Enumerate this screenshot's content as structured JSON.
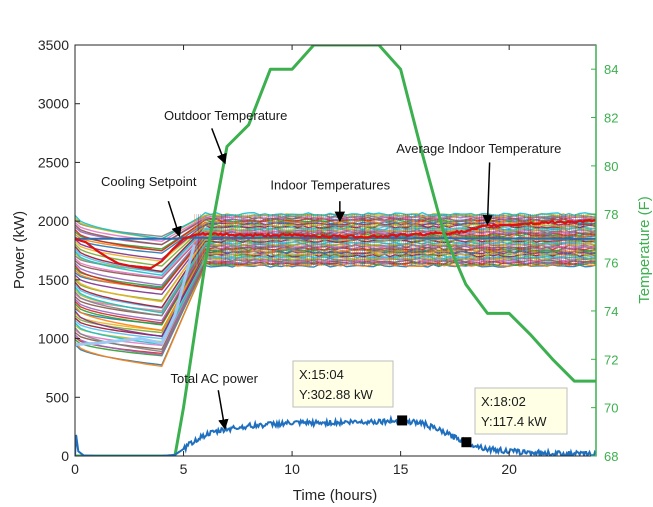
{
  "chart_data": {
    "type": "line",
    "xlabel": "Time (hours)",
    "ylabel_left": "Power (kW)",
    "ylabel_right": "Temperature (F)",
    "xlim": [
      0,
      24
    ],
    "ylim_left": [
      0,
      3500
    ],
    "ylim_right": [
      68,
      85
    ],
    "xticks": [
      0,
      5,
      10,
      15,
      20
    ],
    "yticks_left": [
      0,
      500,
      1000,
      1500,
      2000,
      2500,
      3000,
      3500
    ],
    "yticks_right": [
      68,
      70,
      72,
      74,
      76,
      78,
      80,
      82,
      84
    ],
    "grid": false,
    "colors": {
      "outdoor": "#3cb04f",
      "power": "#1f6fbf",
      "average": "#e01010",
      "setpoint": "#2b6cb3",
      "right_axis": "#3cb04f"
    },
    "outdoor_temperature": {
      "x": [
        0,
        4.6,
        5,
        6,
        7,
        8,
        9,
        10,
        11,
        12,
        13,
        14,
        15,
        16,
        17,
        18,
        19,
        20,
        21,
        22,
        23,
        24
      ],
      "y": [
        68,
        68,
        70,
        76,
        80.8,
        81.7,
        84,
        84,
        85,
        85,
        85,
        85,
        84,
        80.5,
        77.2,
        75.1,
        73.9,
        73.9,
        73,
        72,
        71.1,
        71.1
      ]
    },
    "total_ac_power": {
      "x": [
        0,
        0.05,
        0.15,
        0.4,
        1,
        2,
        3,
        4,
        4.6,
        5,
        5.5,
        6,
        7,
        8,
        9,
        10,
        11,
        12,
        13,
        14,
        15,
        16,
        17,
        18,
        19,
        20,
        21,
        22,
        23,
        24
      ],
      "y": [
        0,
        180,
        40,
        5,
        0,
        0,
        0,
        0,
        10,
        60,
        130,
        180,
        230,
        255,
        270,
        280,
        280,
        285,
        290,
        295,
        300,
        280,
        200,
        117,
        60,
        40,
        30,
        22,
        18,
        15
      ]
    },
    "average_indoor_temperature": {
      "x": [
        0,
        0.5,
        1,
        1.5,
        2,
        2.5,
        3,
        3.5,
        4,
        4.5,
        5,
        5.5,
        6,
        8,
        10,
        12,
        14,
        16,
        17,
        18,
        19,
        20,
        22,
        24
      ],
      "y": [
        1850,
        1820,
        1750,
        1690,
        1640,
        1620,
        1610,
        1600,
        1660,
        1760,
        1850,
        1880,
        1890,
        1880,
        1880,
        1870,
        1870,
        1890,
        1900,
        1910,
        1960,
        1970,
        1990,
        2000
      ]
    },
    "cooling_setpoint": {
      "x": [
        0,
        4.6,
        5,
        24
      ],
      "y": [
        1850,
        1850,
        1860,
        1850
      ]
    },
    "indoor_band": {
      "upper_kw": 2060,
      "lower_kw": 1620
    },
    "annotations": [
      {
        "label": "Outdoor Temperature",
        "x": 4.1,
        "y": 2860
      },
      {
        "label": "Cooling Setpoint",
        "x": 1.2,
        "y": 2300
      },
      {
        "label": "Indoor Temperatures",
        "x": 9,
        "y": 2270
      },
      {
        "label": "Average Indoor Temperature",
        "x": 14.8,
        "y": 2580
      },
      {
        "label": "Total AC power",
        "x": 4.4,
        "y": 620
      }
    ],
    "datatips": [
      {
        "x_label": "X:15:04",
        "y_label": "Y:302.88 kW",
        "x": 15.07,
        "y": 302.88
      },
      {
        "x_label": "X:18:02",
        "y_label": "Y:117.4 kW",
        "x": 18.03,
        "y": 117.4
      }
    ]
  }
}
